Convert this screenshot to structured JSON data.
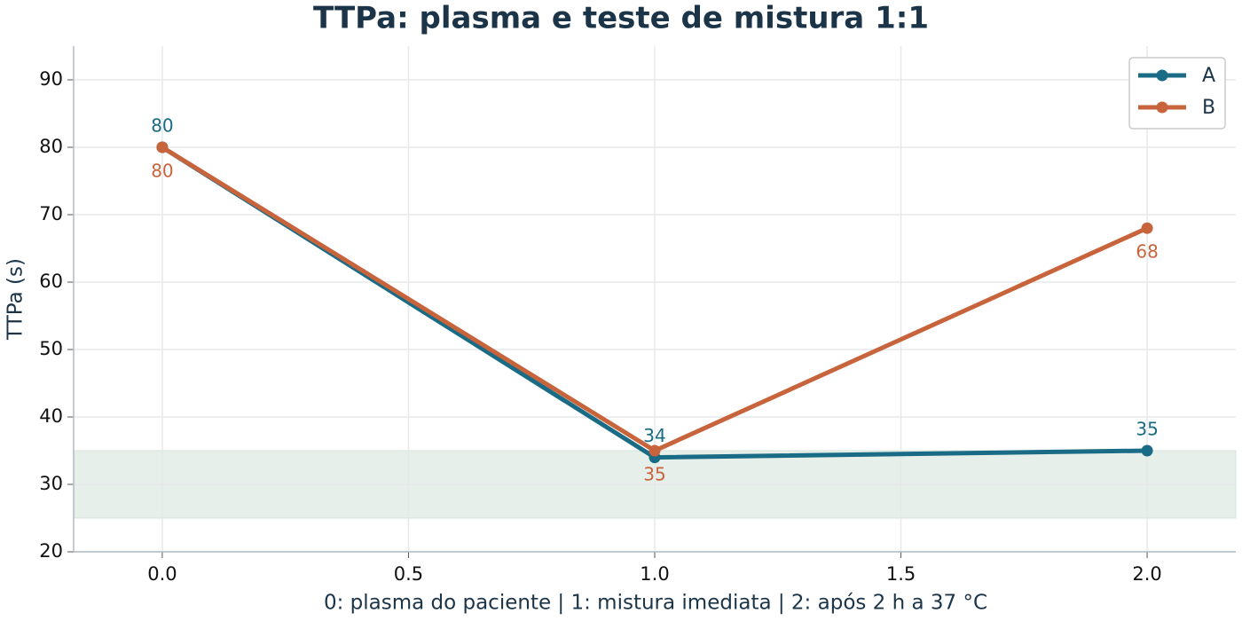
{
  "chart_data": {
    "type": "line",
    "title": "TTPa: plasma e teste de mistura 1:1",
    "xlabel": "0: plasma do paciente  |  1: mistura imediata  |  2: após 2 h a 37 °C",
    "ylabel": "TTPa (s)",
    "x": [
      0,
      1,
      2
    ],
    "series": [
      {
        "name": "A",
        "color": "#1a6b85",
        "values": [
          80,
          34,
          35
        ]
      },
      {
        "name": "B",
        "color": "#c8643c",
        "values": [
          80,
          35,
          68
        ]
      }
    ],
    "xlim": [
      -0.18,
      2.18
    ],
    "ylim": [
      20,
      95
    ],
    "xticks": [
      {
        "value": 0,
        "label": "0.0"
      },
      {
        "value": 0.5,
        "label": "0.5"
      },
      {
        "value": 1,
        "label": "1.0"
      },
      {
        "value": 1.5,
        "label": "1.5"
      },
      {
        "value": 2,
        "label": "2.0"
      }
    ],
    "yticks": [
      20,
      30,
      40,
      50,
      60,
      70,
      80,
      90
    ],
    "shaded_band": {
      "ymin": 25,
      "ymax": 35,
      "color": "#e6efea"
    },
    "grid": true,
    "legend": "upper-right"
  }
}
